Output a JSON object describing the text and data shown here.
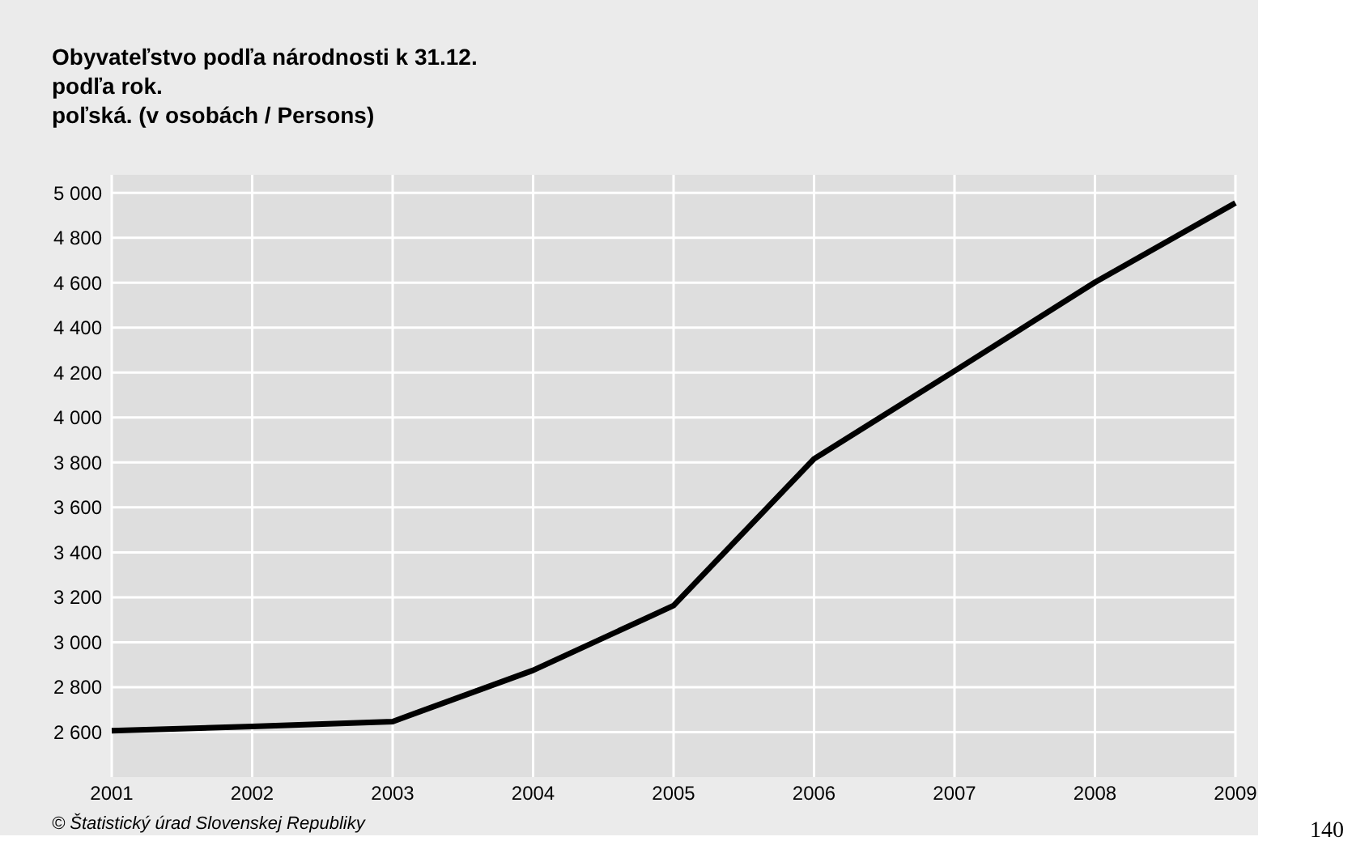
{
  "chart_data": {
    "type": "line",
    "title": "Obyvateľstvo podľa národnosti k 31.12.",
    "subtitle": "podľa rok.\npoľská. (v osobách / Persons)",
    "x": [
      2001,
      2002,
      2003,
      2004,
      2005,
      2006,
      2007,
      2008,
      2009
    ],
    "series": [
      {
        "color": "#000000",
        "values": [
          2606,
          2625,
          2647,
          2875,
          3163,
          3816,
          4207,
          4602,
          4955
        ]
      }
    ],
    "xlim": [
      2001,
      2009
    ],
    "xticks": [
      2001,
      2002,
      2003,
      2004,
      2005,
      2006,
      2007,
      2008,
      2009
    ],
    "ylim": [
      2400,
      5080
    ],
    "yticks": [
      {
        "value": 2600,
        "label": "2 600"
      },
      {
        "value": 2800,
        "label": "2 800"
      },
      {
        "value": 3000,
        "label": "3 000"
      },
      {
        "value": 3200,
        "label": "3 200"
      },
      {
        "value": 3400,
        "label": "3 400"
      },
      {
        "value": 3600,
        "label": "3 600"
      },
      {
        "value": 3800,
        "label": "3 800"
      },
      {
        "value": 4000,
        "label": "4 000"
      },
      {
        "value": 4200,
        "label": "4 200"
      },
      {
        "value": 4400,
        "label": "4 400"
      },
      {
        "value": 4600,
        "label": "4 600"
      },
      {
        "value": 4800,
        "label": "4 800"
      },
      {
        "value": 5000,
        "label": "5 000"
      }
    ],
    "grid": true,
    "marker": "none",
    "line_style": "solid",
    "annotations": [
      "© Štatistický úrad Slovenskej Republiky",
      "140"
    ]
  }
}
